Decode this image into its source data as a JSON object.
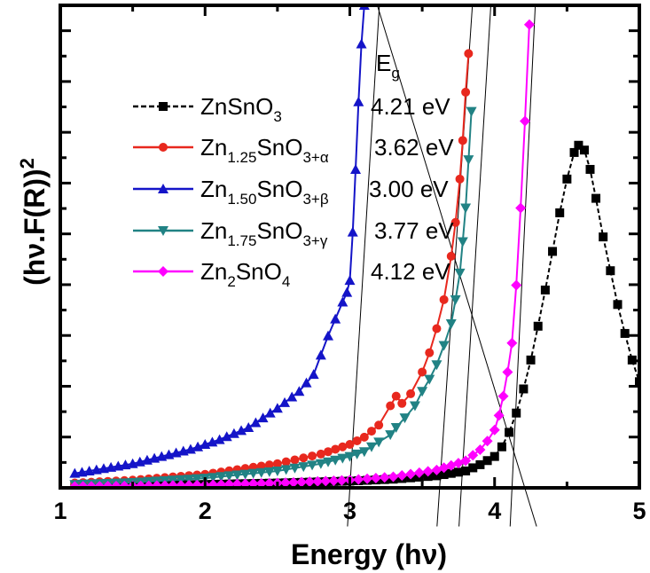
{
  "chart_data": {
    "type": "line",
    "title": "",
    "xlabel": "Energy (hν)",
    "ylabel": "(hν.F(R))²",
    "ylabel_parts": {
      "main": "(hν.F(R))",
      "sup": "2"
    },
    "xlim": [
      1,
      5
    ],
    "ylim": [
      0,
      100
    ],
    "x_ticks": [
      1,
      2,
      3,
      4,
      5
    ],
    "x_tick_labels": [
      "1",
      "2",
      "3",
      "4",
      "5"
    ],
    "y_tick_labels_shown": false,
    "legend_title": {
      "main": "E",
      "sub": "g"
    },
    "legend_position": "top-left",
    "series": [
      {
        "name": "ZnSnO3",
        "label_parts": [
          {
            "t": "ZnSnO",
            "s": "n"
          },
          {
            "t": "3",
            "s": "sub"
          }
        ],
        "band_gap": "4.21 eV",
        "band_gap_value": 4.21,
        "color": "#000000",
        "marker": "square",
        "line_style": "dashed",
        "x": [
          1.1,
          1.5,
          2.0,
          2.5,
          3.0,
          3.3,
          3.6,
          3.8,
          3.9,
          4.0,
          4.05,
          4.1,
          4.15,
          4.2,
          4.25,
          4.3,
          4.35,
          4.4,
          4.45,
          4.5,
          4.55,
          4.58,
          4.62,
          4.66,
          4.7,
          4.75,
          4.8,
          4.85,
          4.9,
          4.95,
          5.0
        ],
        "y": [
          0.4,
          0.5,
          0.7,
          1.0,
          1.4,
          1.8,
          2.5,
          3.5,
          4.8,
          6.5,
          8.5,
          11.5,
          15.5,
          20.5,
          26.5,
          33.5,
          41.0,
          49.0,
          57.0,
          64.0,
          69.5,
          71.0,
          70.0,
          66.0,
          60.0,
          52.0,
          45.0,
          38.0,
          32.0,
          26.5,
          22.0
        ],
        "tangent_x": [
          4.17,
          4.4
        ]
      },
      {
        "name": "Zn1.25SnO3+α",
        "label_parts": [
          {
            "t": "Zn",
            "s": "n"
          },
          {
            "t": "1.25",
            "s": "sub"
          },
          {
            "t": "SnO",
            "s": "n"
          },
          {
            "t": "3+α",
            "s": "sub"
          }
        ],
        "band_gap": "3.62 eV",
        "band_gap_value": 3.62,
        "color": "#e8281e",
        "marker": "circle",
        "line_style": "solid",
        "x": [
          1.1,
          1.5,
          2.0,
          2.5,
          2.8,
          3.0,
          3.1,
          3.2,
          3.28,
          3.32,
          3.36,
          3.42,
          3.5,
          3.55,
          3.6,
          3.65,
          3.7,
          3.73,
          3.76,
          3.78,
          3.8,
          3.82
        ],
        "y": [
          1.0,
          1.6,
          2.8,
          5.0,
          7.0,
          9.0,
          10.5,
          13.0,
          17.0,
          19.0,
          17.5,
          19.5,
          24.0,
          28.0,
          33.0,
          39.0,
          48.0,
          55.0,
          64.0,
          72.0,
          82.0,
          90.0
        ],
        "tangent_x": [
          3.62,
          3.85
        ]
      },
      {
        "name": "Zn1.50SnO3+β",
        "label_parts": [
          {
            "t": "Zn",
            "s": "n"
          },
          {
            "t": "1.50",
            "s": "sub"
          },
          {
            "t": "SnO",
            "s": "n"
          },
          {
            "t": "3+β",
            "s": "sub"
          }
        ],
        "band_gap": "3.00 eV",
        "band_gap_value": 3.0,
        "color": "#1414c8",
        "marker": "triangle-up",
        "line_style": "solid",
        "x": [
          1.1,
          1.3,
          1.5,
          1.7,
          1.9,
          2.1,
          2.3,
          2.5,
          2.65,
          2.75,
          2.8,
          2.85,
          2.9,
          2.95,
          2.98,
          3.0,
          3.02,
          3.04,
          3.06,
          3.08,
          3.1
        ],
        "y": [
          3.0,
          4.0,
          5.0,
          6.5,
          8.0,
          10.0,
          12.5,
          16.5,
          20.0,
          23.5,
          27.5,
          31.5,
          35.0,
          38.5,
          40.5,
          43.0,
          53.0,
          66.0,
          80.0,
          92.0,
          100.0
        ],
        "tangent_x": [
          3.0,
          3.08
        ]
      },
      {
        "name": "Zn1.75SnO3+γ",
        "label_parts": [
          {
            "t": "Zn",
            "s": "n"
          },
          {
            "t": "1.75",
            "s": "sub"
          },
          {
            "t": "SnO",
            "s": "n"
          },
          {
            "t": "3+γ",
            "s": "sub"
          }
        ],
        "band_gap": "3.77 eV",
        "band_gap_value": 3.77,
        "color": "#218284",
        "marker": "triangle-down",
        "line_style": "solid",
        "x": [
          1.1,
          1.5,
          2.0,
          2.5,
          2.8,
          3.0,
          3.1,
          3.2,
          3.28,
          3.32,
          3.38,
          3.45,
          3.5,
          3.55,
          3.6,
          3.65,
          3.7,
          3.73,
          3.76,
          3.78,
          3.8,
          3.82,
          3.84
        ],
        "y": [
          0.7,
          1.1,
          2.0,
          3.5,
          5.0,
          6.5,
          7.5,
          9.5,
          11.0,
          12.5,
          14.5,
          17.0,
          20.0,
          22.5,
          25.5,
          29.5,
          34.0,
          39.0,
          44.5,
          51.0,
          58.0,
          68.0,
          78.0
        ],
        "tangent_x": [
          3.77,
          3.9
        ]
      },
      {
        "name": "Zn2SnO4",
        "label_parts": [
          {
            "t": "Zn",
            "s": "n"
          },
          {
            "t": "2",
            "s": "sub"
          },
          {
            "t": "SnO",
            "s": "n"
          },
          {
            "t": "4",
            "s": "sub"
          }
        ],
        "band_gap": "4.12 eV",
        "band_gap_value": 4.12,
        "color": "#ff00ff",
        "marker": "diamond",
        "line_style": "solid",
        "x": [
          1.1,
          1.5,
          2.0,
          2.5,
          3.0,
          3.3,
          3.6,
          3.8,
          3.9,
          3.95,
          4.0,
          4.03,
          4.06,
          4.09,
          4.12,
          4.15,
          4.18,
          4.21,
          4.24
        ],
        "y": [
          0.3,
          0.4,
          0.6,
          1.0,
          1.6,
          2.3,
          3.7,
          5.6,
          7.9,
          9.7,
          12.0,
          15.0,
          19.0,
          24.0,
          30.0,
          42.0,
          58.0,
          76.0,
          96.0
        ],
        "tangent_x": [
          4.08,
          4.3
        ]
      }
    ]
  }
}
